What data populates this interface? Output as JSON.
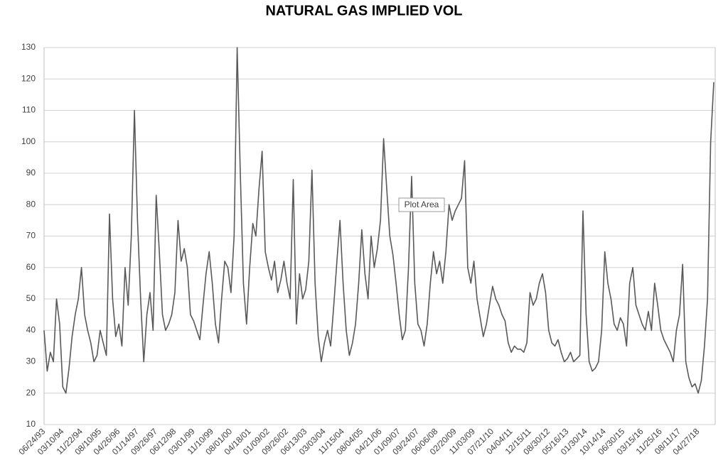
{
  "chart_data": {
    "type": "line",
    "title": "NATURAL GAS IMPLIED VOL",
    "annotation": "Plot Area",
    "categories": [
      "06/24/93",
      null,
      null,
      null,
      null,
      null,
      "03/10/94",
      null,
      null,
      null,
      null,
      null,
      "11/22/94",
      null,
      null,
      null,
      null,
      null,
      "08/10/95",
      null,
      null,
      null,
      null,
      null,
      "04/26/96",
      null,
      null,
      null,
      null,
      null,
      "01/14/97",
      null,
      null,
      null,
      null,
      null,
      "09/26/97",
      null,
      null,
      null,
      null,
      null,
      "06/12/98",
      null,
      null,
      null,
      null,
      null,
      "03/01/99",
      null,
      null,
      null,
      null,
      null,
      "11/10/99",
      null,
      null,
      null,
      null,
      null,
      "08/01/00",
      null,
      null,
      null,
      null,
      null,
      "04/18/01",
      null,
      null,
      null,
      null,
      null,
      "01/09/02",
      null,
      null,
      null,
      null,
      null,
      "09/26/02",
      null,
      null,
      null,
      null,
      null,
      "06/13/03",
      null,
      null,
      null,
      null,
      null,
      "03/03/04",
      null,
      null,
      null,
      null,
      null,
      "11/15/04",
      null,
      null,
      null,
      null,
      null,
      "08/04/05",
      null,
      null,
      null,
      null,
      null,
      "04/21/06",
      null,
      null,
      null,
      null,
      null,
      "01/09/07",
      null,
      null,
      null,
      null,
      null,
      "09/24/07",
      null,
      null,
      null,
      null,
      null,
      "06/06/08",
      null,
      null,
      null,
      null,
      null,
      "02/20/09",
      null,
      null,
      null,
      null,
      null,
      "11/03/09",
      null,
      null,
      null,
      null,
      null,
      "07/21/10",
      null,
      null,
      null,
      null,
      null,
      "04/04/11",
      null,
      null,
      null,
      null,
      null,
      "12/15/11",
      null,
      null,
      null,
      null,
      null,
      "08/30/12",
      null,
      null,
      null,
      null,
      null,
      "05/16/13",
      null,
      null,
      null,
      null,
      null,
      "01/30/14",
      null,
      null,
      null,
      null,
      null,
      "10/14/14",
      null,
      null,
      null,
      null,
      null,
      "06/30/15",
      null,
      null,
      null,
      null,
      null,
      "03/15/16",
      null,
      null,
      null,
      null,
      null,
      "11/25/16",
      null,
      null,
      null,
      null,
      null,
      "08/11/17",
      null,
      null,
      null,
      null,
      null,
      "04/27/18",
      null,
      null,
      null,
      null,
      null
    ],
    "values": [
      40,
      27,
      33,
      30,
      50,
      42,
      22,
      20,
      28,
      38,
      45,
      50,
      60,
      45,
      40,
      36,
      30,
      32,
      40,
      36,
      32,
      77,
      50,
      38,
      42,
      35,
      60,
      48,
      70,
      110,
      75,
      50,
      30,
      45,
      52,
      40,
      83,
      65,
      45,
      40,
      42,
      45,
      52,
      75,
      62,
      66,
      60,
      45,
      43,
      40,
      37,
      48,
      58,
      65,
      55,
      42,
      36,
      50,
      62,
      60,
      52,
      70,
      130,
      90,
      55,
      42,
      60,
      74,
      70,
      85,
      97,
      65,
      60,
      56,
      62,
      52,
      56,
      62,
      55,
      50,
      88,
      42,
      58,
      50,
      53,
      62,
      91,
      55,
      38,
      30,
      36,
      40,
      35,
      48,
      62,
      75,
      55,
      40,
      32,
      36,
      42,
      55,
      72,
      58,
      50,
      70,
      60,
      66,
      75,
      101,
      85,
      70,
      64,
      55,
      45,
      37,
      40,
      60,
      89,
      55,
      42,
      40,
      35,
      42,
      55,
      65,
      58,
      62,
      55,
      65,
      80,
      75,
      78,
      80,
      82,
      94,
      60,
      55,
      62,
      50,
      44,
      38,
      42,
      48,
      54,
      50,
      48,
      45,
      43,
      36,
      33,
      35,
      34,
      34,
      33,
      36,
      52,
      48,
      50,
      55,
      58,
      52,
      40,
      36,
      35,
      37,
      33,
      30,
      31,
      33,
      30,
      31,
      32,
      78,
      45,
      30,
      27,
      28,
      30,
      40,
      65,
      55,
      50,
      42,
      40,
      44,
      42,
      35,
      55,
      60,
      48,
      45,
      42,
      40,
      46,
      40,
      55,
      48,
      40,
      37,
      35,
      33,
      30,
      40,
      45,
      61,
      30,
      25,
      22,
      23,
      20,
      24,
      35,
      50,
      100,
      119
    ],
    "color": "#595959",
    "ylim": [
      10,
      130
    ],
    "yticks": [
      10,
      20,
      30,
      40,
      50,
      60,
      70,
      80,
      90,
      100,
      110,
      120,
      130
    ],
    "grid": true
  }
}
